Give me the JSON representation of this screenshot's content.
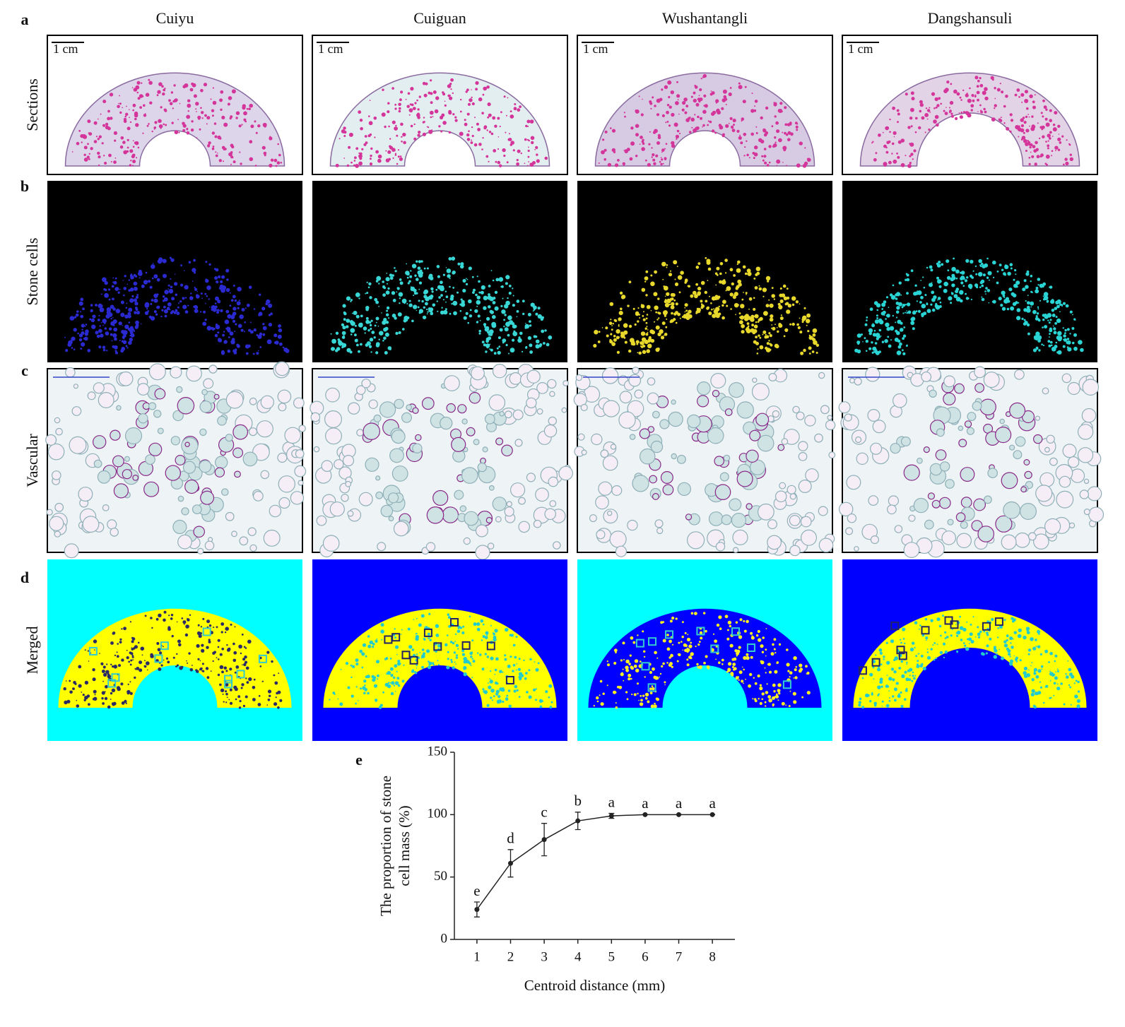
{
  "figure": {
    "panel_letters": [
      "a",
      "b",
      "c",
      "d",
      "e"
    ],
    "column_titles": [
      "Cuiyu",
      "Cuiguan",
      "Wushantangli",
      "Dangshansuli"
    ],
    "row_labels": [
      "Sections",
      "Stone cells",
      "Vascular",
      "Merged"
    ],
    "scale_bars": [
      "1 cm",
      "1 cm",
      "1 cm",
      "1 cm"
    ]
  },
  "chart_data": {
    "type": "line",
    "x_label": "Centroid distance (mm)",
    "y_label": [
      "The proportion of stone",
      "cell mass (%)"
    ],
    "x": [
      1,
      2,
      3,
      4,
      5,
      6,
      7,
      8
    ],
    "series": [
      {
        "color": "#222222",
        "values": [
          24,
          61,
          80,
          95,
          99,
          100,
          100,
          100
        ],
        "error": [
          6,
          11,
          13,
          7,
          2,
          0,
          0,
          0
        ],
        "value_labels": [
          "e",
          "d",
          "c",
          "b",
          "a",
          "a",
          "a",
          "a"
        ]
      }
    ],
    "xlim": [
      0.33,
      8.67
    ],
    "xticks": [
      1,
      2,
      3,
      4,
      5,
      6,
      7,
      8
    ],
    "ylim": [
      0,
      150
    ],
    "yticks": [
      0,
      50,
      100,
      150
    ]
  }
}
